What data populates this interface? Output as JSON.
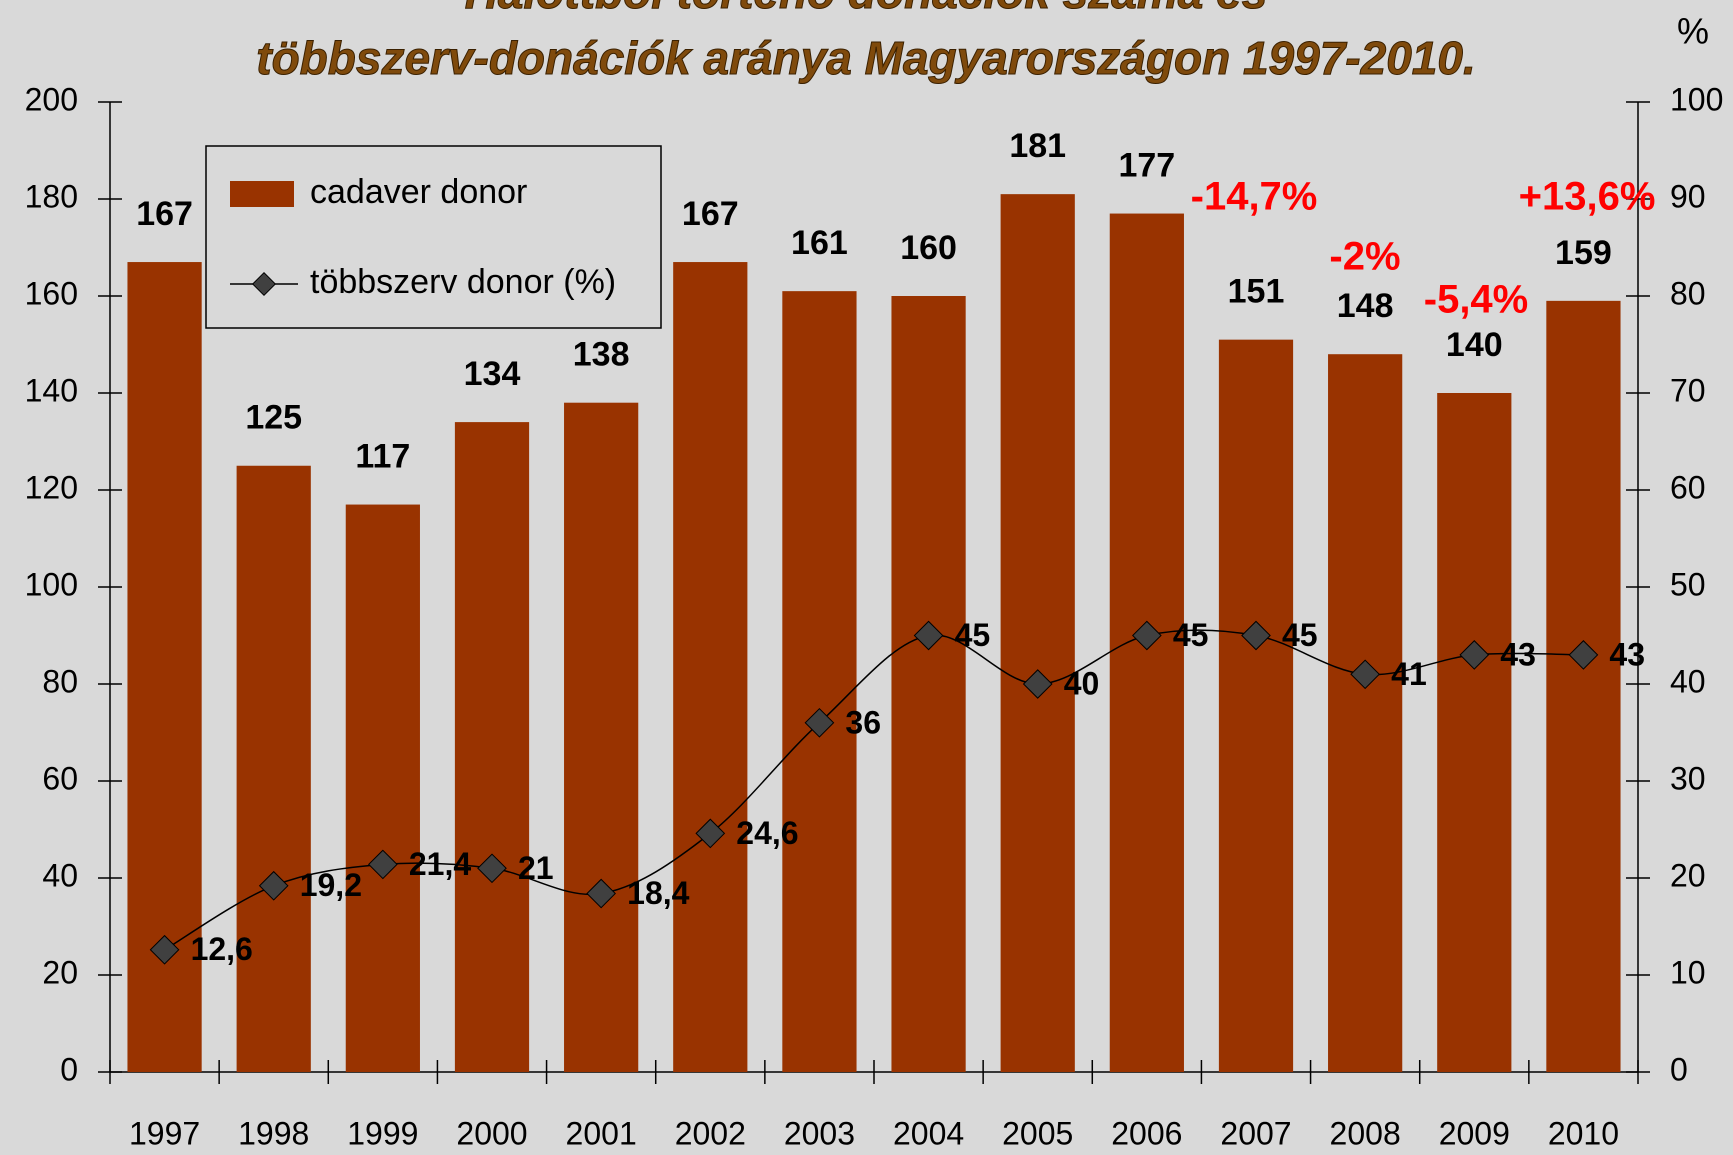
{
  "chart_data": {
    "type": "bar",
    "title": "Halottból történő donációk száma és",
    "subtitle": "többszerv-donációk aránya Magyarországon 1997-2010.",
    "y2_label": "%",
    "categories": [
      "1997",
      "1998",
      "1999",
      "2000",
      "2001",
      "2002",
      "2003",
      "2004",
      "2005",
      "2006",
      "2007",
      "2008",
      "2009",
      "2010"
    ],
    "series": [
      {
        "name": "cadaver donor",
        "color": "#993300",
        "type": "bar",
        "values": [
          167,
          125,
          117,
          134,
          138,
          167,
          161,
          160,
          181,
          177,
          151,
          148,
          140,
          159
        ]
      },
      {
        "name": "többszerv donor (%)",
        "color": "#000000",
        "type": "line",
        "axis": "y2",
        "values": [
          12.6,
          19.2,
          21.4,
          21,
          18.4,
          24.6,
          36,
          45,
          40,
          45,
          45,
          41,
          43,
          43
        ],
        "value_labels": [
          "12,6",
          "19,2",
          "21,4",
          "21",
          "18,4",
          "24,6",
          "36",
          "45",
          "40",
          "45",
          "45",
          "41",
          "43",
          "43"
        ]
      }
    ],
    "annotations": [
      "-14,7%",
      "-2%",
      "-5,4%",
      "+13,6%"
    ],
    "ylim": [
      0,
      200
    ],
    "yticks": [
      0,
      20,
      40,
      60,
      80,
      100,
      120,
      140,
      160,
      180,
      200
    ],
    "y2lim": [
      0,
      100
    ],
    "y2ticks": [
      0,
      10,
      20,
      30,
      40,
      50,
      60,
      70,
      80,
      90,
      100
    ],
    "legend": "top-left"
  }
}
